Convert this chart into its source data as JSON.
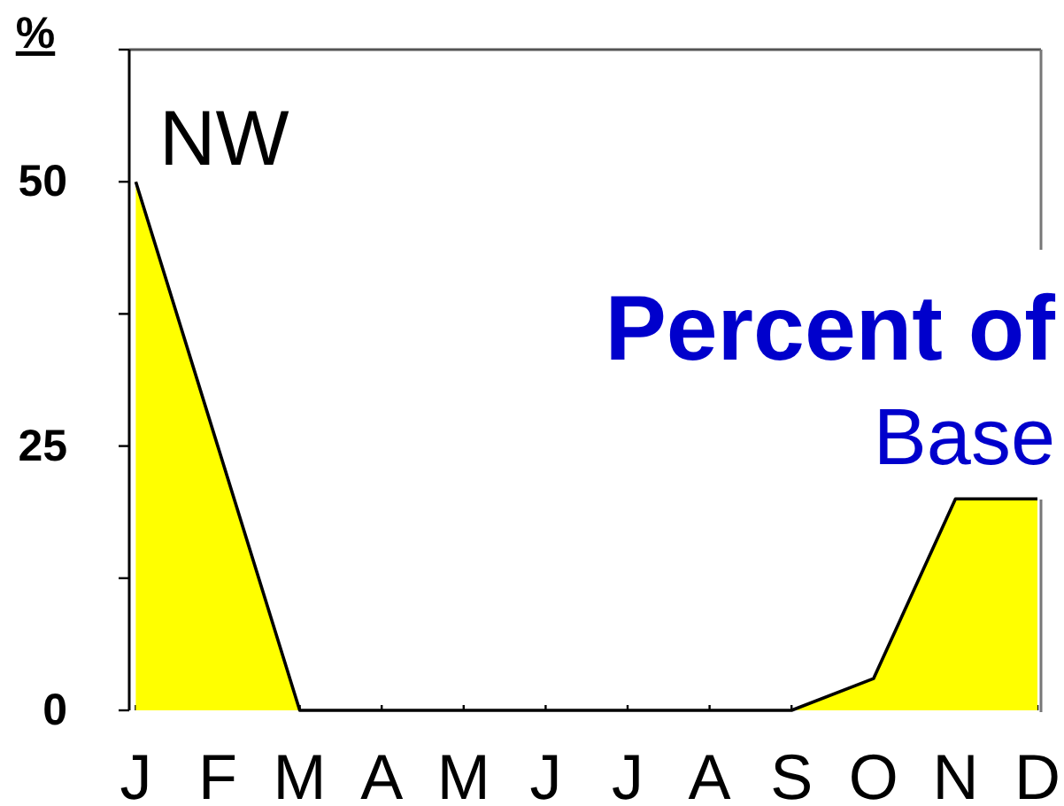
{
  "chart_data": {
    "type": "area",
    "title": "Percent of",
    "subtitle": "Base",
    "ylabel": "%",
    "annotations": [
      "NW"
    ],
    "categories": [
      "J",
      "F",
      "M",
      "A",
      "M",
      "J",
      "J",
      "A",
      "S",
      "O",
      "N",
      "D"
    ],
    "series": [
      {
        "color": "#ffff00",
        "values": [
          50,
          25,
          0,
          0,
          0,
          0,
          0,
          0,
          0,
          3,
          20,
          20
        ]
      }
    ],
    "ylim": [
      0,
      62.5
    ],
    "yticks": [
      0,
      {
        "value": 12.5,
        "label": null
      },
      25,
      {
        "value": 37.5,
        "label": null
      },
      50,
      {
        "value": 62.5,
        "label": null
      }
    ]
  }
}
